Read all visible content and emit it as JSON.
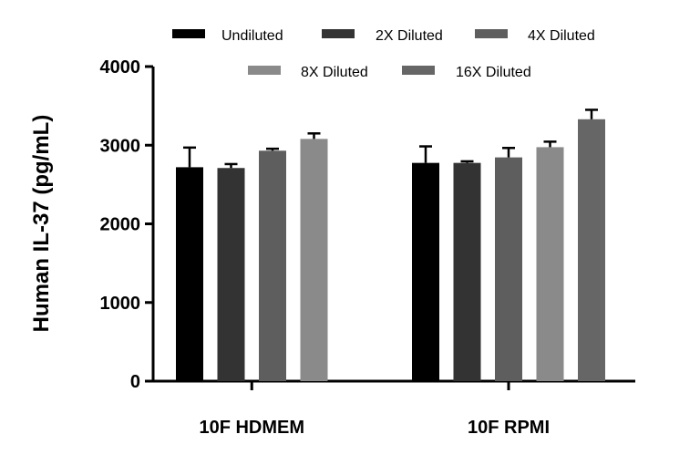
{
  "chart_data": {
    "type": "bar",
    "title": "",
    "xlabel": "",
    "ylabel": "Human IL-37 (pg/mL)",
    "ylim": [
      0,
      4000
    ],
    "yticks": [
      "0",
      "1000",
      "2000",
      "3000",
      "4000"
    ],
    "grid": false,
    "legend_position": "top",
    "categories": [
      "10F HDMEM",
      "10F RPMI"
    ],
    "series": [
      {
        "name": "Undiluted",
        "color": "#000000",
        "values": [
          2720,
          2775
        ],
        "errors": [
          250,
          210
        ]
      },
      {
        "name": "2X Diluted",
        "color": "#333333",
        "values": [
          2710,
          2775
        ],
        "errors": [
          50,
          20
        ]
      },
      {
        "name": "4X Diluted",
        "color": "#5e5e5e",
        "values": [
          2930,
          2845
        ],
        "errors": [
          25,
          120
        ]
      },
      {
        "name": "8X Diluted",
        "color": "#8a8a8a",
        "values": [
          3080,
          2975
        ],
        "errors": [
          70,
          70
        ]
      },
      {
        "name": "16X Diluted",
        "color": "#666666",
        "values": [
          null,
          3330
        ],
        "errors": [
          null,
          120
        ]
      }
    ]
  }
}
